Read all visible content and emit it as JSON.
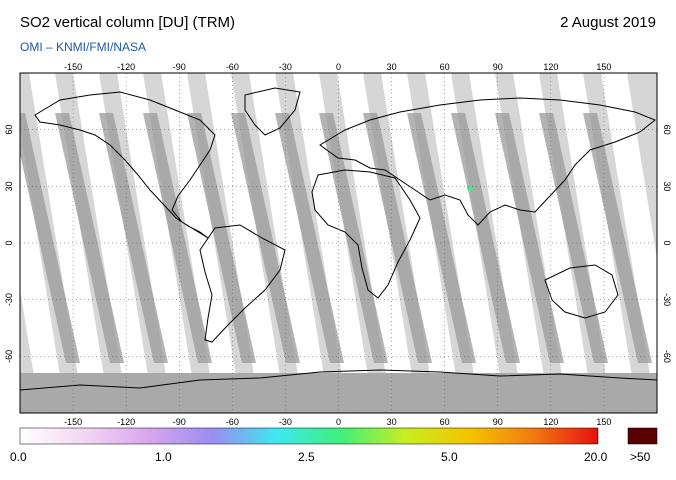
{
  "header": {
    "title": "SO2 vertical column [DU] (TRM)",
    "date": "2 August 2019",
    "credit": "OMI  –  KNMI/FMI/NASA"
  },
  "map": {
    "projection": "equirectangular",
    "lon_range": [
      -180,
      180
    ],
    "lat_range": [
      -90,
      90
    ],
    "grid": true,
    "lon_ticks": [
      "-150",
      "-120",
      "-90",
      "-60",
      "-30",
      "0",
      "30",
      "60",
      "90",
      "120",
      "150"
    ],
    "lat_ticks": [
      "60",
      "30",
      "0",
      "-30",
      "-60"
    ],
    "colors": {
      "ocean_no_data": "#d6d6d6",
      "swath_light": "#ffffff",
      "swath_dark": "#9a9a9a",
      "land_outline": "#000000",
      "gridline": "#555555"
    }
  },
  "colorbar": {
    "labels": [
      "0.0",
      "1.0",
      "2.5",
      "5.0",
      "20.0"
    ],
    "overflow_label": ">50",
    "overflow_color": "#5a0000",
    "gradient": [
      "#ffffff",
      "#f3d6f3",
      "#d8a6ee",
      "#9a8ef0",
      "#3ee8f0",
      "#3ef07a",
      "#c8ee20",
      "#f5c400",
      "#f07a10",
      "#e81010"
    ]
  }
}
